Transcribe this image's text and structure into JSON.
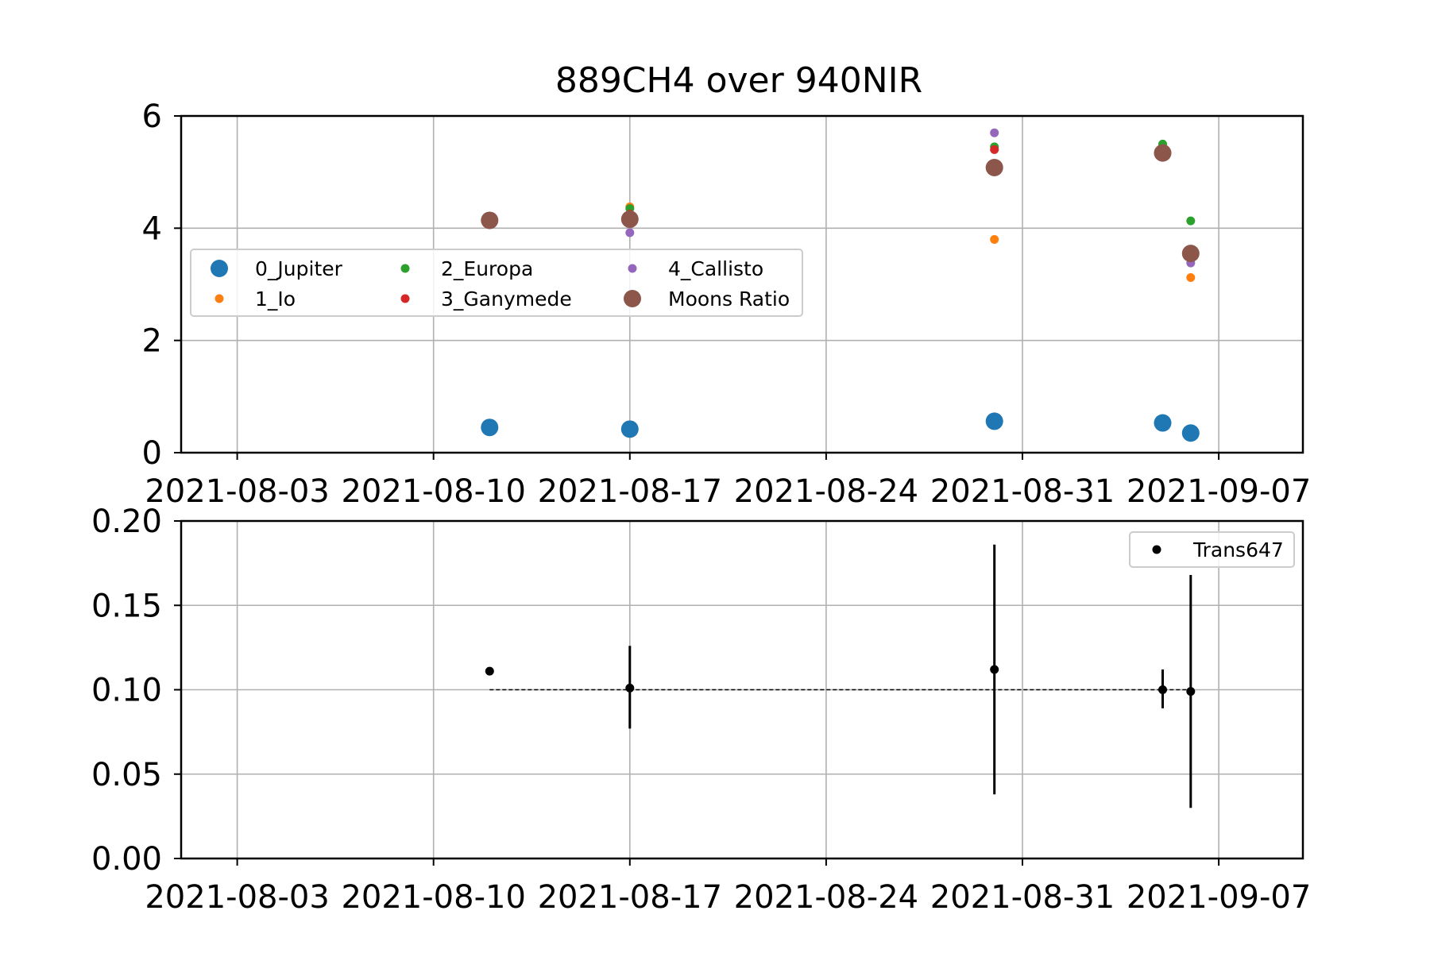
{
  "chart_data": [
    {
      "type": "scatter",
      "title": "889CH4 over 940NIR",
      "xlabel": "",
      "ylabel": "",
      "x_axis": {
        "kind": "date",
        "range": [
          "2021-08-01",
          "2021-09-10"
        ],
        "ticks": [
          "2021-08-03",
          "2021-08-10",
          "2021-08-17",
          "2021-08-24",
          "2021-08-31",
          "2021-09-07"
        ]
      },
      "ylim": [
        0,
        6
      ],
      "y_ticks": [
        "0",
        "2",
        "4",
        "6"
      ],
      "y_tick_values": [
        0,
        2,
        4,
        6
      ],
      "grid": true,
      "legend": {
        "placement": "center-left",
        "columns": 3
      },
      "series": [
        {
          "name": "0_Jupiter",
          "color": "#1f77b4",
          "marker": "large",
          "points": [
            {
              "x": "2021-08-12",
              "y": 0.45
            },
            {
              "x": "2021-08-17",
              "y": 0.42
            },
            {
              "x": "2021-08-30",
              "y": 0.56
            },
            {
              "x": "2021-09-05",
              "y": 0.53
            },
            {
              "x": "2021-09-06",
              "y": 0.35
            }
          ]
        },
        {
          "name": "1_Io",
          "color": "#ff7f0e",
          "marker": "small",
          "points": [
            {
              "x": "2021-08-17",
              "y": 4.38
            },
            {
              "x": "2021-08-30",
              "y": 3.8
            },
            {
              "x": "2021-09-06",
              "y": 3.12
            }
          ]
        },
        {
          "name": "2_Europa",
          "color": "#2ca02c",
          "marker": "small",
          "points": [
            {
              "x": "2021-08-17",
              "y": 4.35
            },
            {
              "x": "2021-08-30",
              "y": 5.45
            },
            {
              "x": "2021-09-05",
              "y": 5.5
            },
            {
              "x": "2021-09-06",
              "y": 4.13
            }
          ]
        },
        {
          "name": "3_Ganymede",
          "color": "#d62728",
          "marker": "small",
          "points": [
            {
              "x": "2021-08-17",
              "y": 4.25
            },
            {
              "x": "2021-08-30",
              "y": 5.4
            },
            {
              "x": "2021-09-05",
              "y": 5.35
            }
          ]
        },
        {
          "name": "4_Callisto",
          "color": "#9467bd",
          "marker": "small",
          "points": [
            {
              "x": "2021-08-17",
              "y": 3.92
            },
            {
              "x": "2021-08-30",
              "y": 5.7
            },
            {
              "x": "2021-09-06",
              "y": 3.38
            }
          ]
        },
        {
          "name": "Moons Ratio",
          "color": "#8c564b",
          "marker": "large",
          "points": [
            {
              "x": "2021-08-12",
              "y": 4.14
            },
            {
              "x": "2021-08-17",
              "y": 4.16
            },
            {
              "x": "2021-08-30",
              "y": 5.08
            },
            {
              "x": "2021-09-05",
              "y": 5.34
            },
            {
              "x": "2021-09-06",
              "y": 3.55
            }
          ]
        }
      ]
    },
    {
      "type": "scatter",
      "title": "",
      "xlabel": "",
      "ylabel": "",
      "x_axis": {
        "kind": "date",
        "range": [
          "2021-08-01",
          "2021-09-10"
        ],
        "ticks": [
          "2021-08-03",
          "2021-08-10",
          "2021-08-17",
          "2021-08-24",
          "2021-08-31",
          "2021-09-07"
        ]
      },
      "ylim": [
        0,
        0.2
      ],
      "y_ticks": [
        "0.00",
        "0.05",
        "0.10",
        "0.15",
        "0.20"
      ],
      "y_tick_values": [
        0,
        0.05,
        0.1,
        0.15,
        0.2
      ],
      "grid": true,
      "legend": {
        "placement": "top-right",
        "columns": 1
      },
      "series": [
        {
          "name": "Trans647",
          "color": "#000000",
          "marker": "small",
          "points": [
            {
              "x": "2021-08-12",
              "y": 0.111,
              "err_low": 0.111,
              "err_high": 0.111
            },
            {
              "x": "2021-08-17",
              "y": 0.101,
              "err_low": 0.077,
              "err_high": 0.126
            },
            {
              "x": "2021-08-30",
              "y": 0.112,
              "err_low": 0.038,
              "err_high": 0.186
            },
            {
              "x": "2021-09-05",
              "y": 0.1,
              "err_low": 0.089,
              "err_high": 0.112
            },
            {
              "x": "2021-09-06",
              "y": 0.099,
              "err_low": 0.03,
              "err_high": 0.168
            }
          ]
        }
      ],
      "reference_line": {
        "y": 0.1,
        "x_start": "2021-08-12",
        "x_end": "2021-09-06",
        "style": "dashed",
        "color": "#000000"
      }
    }
  ]
}
